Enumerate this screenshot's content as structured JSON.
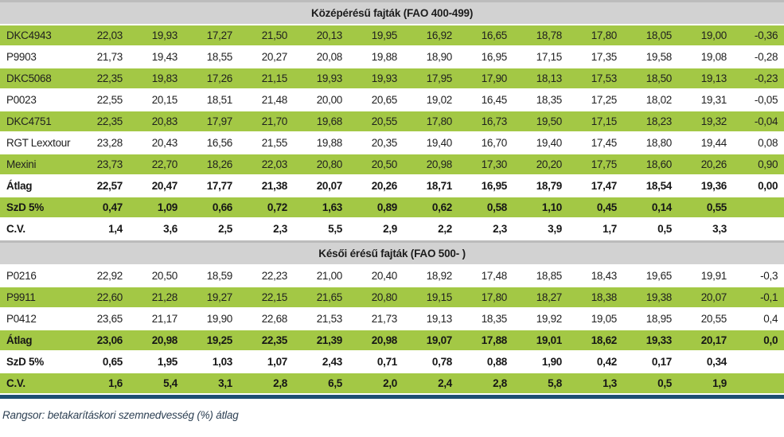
{
  "colors": {
    "row_green": "#a3c845",
    "header_gray": "#d2d2d2",
    "rule_navy": "#1d4f72",
    "footnote_color": "#2e4154"
  },
  "table": {
    "columns_count": 14,
    "sections": [
      {
        "header": "Középérésű fajták (FAO 400-499)",
        "rows": [
          {
            "label": "DKC4943",
            "green": true,
            "bold": false,
            "values": [
              "22,03",
              "19,93",
              "17,27",
              "21,50",
              "20,13",
              "19,95",
              "16,92",
              "16,65",
              "18,78",
              "17,80",
              "18,05",
              "19,00",
              "-0,36"
            ]
          },
          {
            "label": "P9903",
            "green": false,
            "bold": false,
            "values": [
              "21,73",
              "19,43",
              "18,55",
              "20,27",
              "20,08",
              "19,88",
              "18,90",
              "16,95",
              "17,15",
              "17,35",
              "19,58",
              "19,08",
              "-0,28"
            ]
          },
          {
            "label": "DKC5068",
            "green": true,
            "bold": false,
            "values": [
              "22,35",
              "19,83",
              "17,26",
              "21,15",
              "19,93",
              "19,93",
              "17,95",
              "17,90",
              "18,13",
              "17,53",
              "18,50",
              "19,13",
              "-0,23"
            ]
          },
          {
            "label": "P0023",
            "green": false,
            "bold": false,
            "values": [
              "22,55",
              "20,15",
              "18,51",
              "21,48",
              "20,00",
              "20,65",
              "19,02",
              "16,45",
              "18,35",
              "17,25",
              "18,02",
              "19,31",
              "-0,05"
            ]
          },
          {
            "label": "DKC4751",
            "green": true,
            "bold": false,
            "values": [
              "22,35",
              "20,83",
              "17,97",
              "21,70",
              "19,68",
              "20,55",
              "17,80",
              "16,73",
              "19,50",
              "17,15",
              "18,23",
              "19,32",
              "-0,04"
            ]
          },
          {
            "label": "RGT Lexxtour",
            "green": false,
            "bold": false,
            "values": [
              "23,28",
              "20,43",
              "16,56",
              "21,55",
              "19,88",
              "20,35",
              "19,40",
              "16,70",
              "19,40",
              "17,45",
              "18,80",
              "19,44",
              "0,08"
            ]
          },
          {
            "label": "Mexini",
            "green": true,
            "bold": false,
            "values": [
              "23,73",
              "22,70",
              "18,26",
              "22,03",
              "20,80",
              "20,50",
              "20,98",
              "17,30",
              "20,20",
              "17,75",
              "18,60",
              "20,26",
              "0,90"
            ]
          },
          {
            "label": "Átlag",
            "green": false,
            "bold": true,
            "values": [
              "22,57",
              "20,47",
              "17,77",
              "21,38",
              "20,07",
              "20,26",
              "18,71",
              "16,95",
              "18,79",
              "17,47",
              "18,54",
              "19,36",
              "0,00"
            ]
          },
          {
            "label": "SzD 5%",
            "green": true,
            "bold": true,
            "values": [
              "0,47",
              "1,09",
              "0,66",
              "0,72",
              "1,63",
              "0,89",
              "0,62",
              "0,58",
              "1,10",
              "0,45",
              "0,14",
              "0,55",
              ""
            ]
          },
          {
            "label": "C.V.",
            "green": false,
            "bold": true,
            "values": [
              "1,4",
              "3,6",
              "2,5",
              "2,3",
              "5,5",
              "2,9",
              "2,2",
              "2,3",
              "3,9",
              "1,7",
              "0,5",
              "3,3",
              ""
            ]
          }
        ]
      },
      {
        "header": "Késői érésű fajták (FAO 500- )",
        "rows": [
          {
            "label": "P0216",
            "green": false,
            "bold": false,
            "values": [
              "22,92",
              "20,50",
              "18,59",
              "22,23",
              "21,00",
              "20,40",
              "18,92",
              "17,48",
              "18,85",
              "18,43",
              "19,65",
              "19,91",
              "-0,3"
            ]
          },
          {
            "label": "P9911",
            "green": true,
            "bold": false,
            "values": [
              "22,60",
              "21,28",
              "19,27",
              "22,15",
              "21,65",
              "20,80",
              "19,15",
              "17,80",
              "18,27",
              "18,38",
              "19,38",
              "20,07",
              "-0,1"
            ]
          },
          {
            "label": "P0412",
            "green": false,
            "bold": false,
            "values": [
              "23,65",
              "21,17",
              "19,90",
              "22,68",
              "21,53",
              "21,73",
              "19,13",
              "18,35",
              "19,92",
              "19,05",
              "18,95",
              "20,55",
              "0,4"
            ]
          },
          {
            "label": "Átlag",
            "green": true,
            "bold": true,
            "values": [
              "23,06",
              "20,98",
              "19,25",
              "22,35",
              "21,39",
              "20,98",
              "19,07",
              "17,88",
              "19,01",
              "18,62",
              "19,33",
              "20,17",
              "0,0"
            ]
          },
          {
            "label": "SzD 5%",
            "green": false,
            "bold": true,
            "values": [
              "0,65",
              "1,95",
              "1,03",
              "1,07",
              "2,43",
              "0,71",
              "0,78",
              "0,88",
              "1,90",
              "0,42",
              "0,17",
              "0,34",
              ""
            ]
          },
          {
            "label": "C.V.",
            "green": true,
            "bold": true,
            "values": [
              "1,6",
              "5,4",
              "3,1",
              "2,8",
              "6,5",
              "2,0",
              "2,4",
              "2,8",
              "5,8",
              "1,3",
              "0,5",
              "1,9",
              ""
            ]
          }
        ]
      }
    ],
    "footnote": "Rangsor: betakarításkori szemnedvesség (%) átlag"
  }
}
